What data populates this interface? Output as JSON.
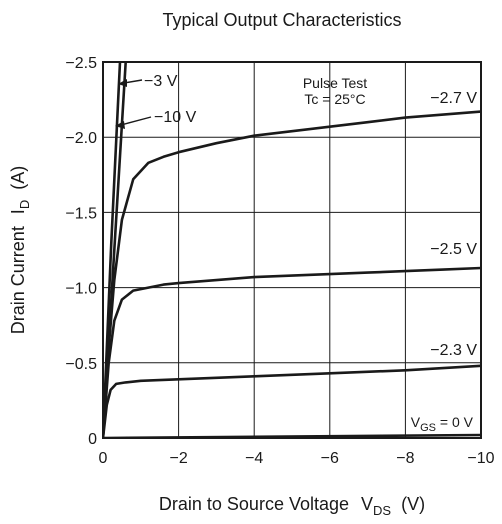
{
  "chart_data": {
    "type": "line",
    "title": "Typical Output Characteristics",
    "xlabel": {
      "main": "Drain to Source Voltage",
      "sym": "V",
      "sub": "DS",
      "unit": "(V)"
    },
    "ylabel": {
      "main": "Drain Current",
      "sym": "I",
      "sub": "D",
      "unit": "(A)"
    },
    "xlim": [
      0,
      -10
    ],
    "ylim": [
      0,
      -2.5
    ],
    "grid": true,
    "x_ticks": [
      {
        "value": 0,
        "label": "0"
      },
      {
        "value": -2,
        "label": "−2"
      },
      {
        "value": -4,
        "label": "−4"
      },
      {
        "value": -6,
        "label": "−6"
      },
      {
        "value": -8,
        "label": "−8"
      },
      {
        "value": -10,
        "label": "−10"
      }
    ],
    "y_ticks": [
      {
        "value": 0,
        "label": "0"
      },
      {
        "value": -0.5,
        "label": "−0.5"
      },
      {
        "value": -1.0,
        "label": "−1.0"
      },
      {
        "value": -1.5,
        "label": "−1.5"
      },
      {
        "value": -2.0,
        "label": "−2.0"
      },
      {
        "value": -2.5,
        "label": "−2.5"
      }
    ],
    "annotation": {
      "line1": "Pulse Test",
      "line2": "Tc = 25°C"
    },
    "series": [
      {
        "name": "−10 V",
        "x": [
          0,
          -0.22,
          -0.45
        ],
        "y": [
          0,
          -1.3,
          -2.5
        ]
      },
      {
        "name": "−3 V",
        "x": [
          0,
          -0.3,
          -0.6
        ],
        "y": [
          0,
          -1.25,
          -2.5
        ]
      },
      {
        "name": "−2.7 V",
        "x": [
          0,
          -0.15,
          -0.3,
          -0.5,
          -0.8,
          -1.2,
          -1.6,
          -2,
          -3,
          -4,
          -5,
          -6,
          -7,
          -8,
          -9,
          -10
        ],
        "y": [
          0,
          -0.6,
          -1.05,
          -1.45,
          -1.72,
          -1.83,
          -1.87,
          -1.9,
          -1.96,
          -2.01,
          -2.04,
          -2.07,
          -2.1,
          -2.13,
          -2.15,
          -2.17
        ]
      },
      {
        "name": "−2.5 V",
        "x": [
          0,
          -0.15,
          -0.3,
          -0.5,
          -0.8,
          -1.2,
          -1.6,
          -2,
          -3,
          -4,
          -5,
          -6,
          -7,
          -8,
          -9,
          -10
        ],
        "y": [
          0,
          -0.5,
          -0.78,
          -0.92,
          -0.98,
          -1.0,
          -1.02,
          -1.03,
          -1.05,
          -1.07,
          -1.08,
          -1.09,
          -1.1,
          -1.11,
          -1.12,
          -1.13
        ]
      },
      {
        "name": "−2.3 V",
        "x": [
          0,
          -0.1,
          -0.2,
          -0.35,
          -0.6,
          -1,
          -2,
          -4,
          -6,
          -8,
          -10
        ],
        "y": [
          0,
          -0.22,
          -0.32,
          -0.36,
          -0.37,
          -0.38,
          -0.39,
          -0.41,
          -0.43,
          -0.45,
          -0.48
        ]
      },
      {
        "name": "V_GS = 0 V",
        "x": [
          0,
          -10
        ],
        "y": [
          0,
          -0.02
        ]
      }
    ],
    "curve_labels": {
      "m10": "−10 V",
      "m3": "−3 V",
      "m27": "−2.7 V",
      "m25": "−2.5 V",
      "m23": "−2.3 V",
      "vgs0": {
        "sym": "V",
        "sub": "GS",
        "rest": " = 0 V"
      }
    }
  }
}
